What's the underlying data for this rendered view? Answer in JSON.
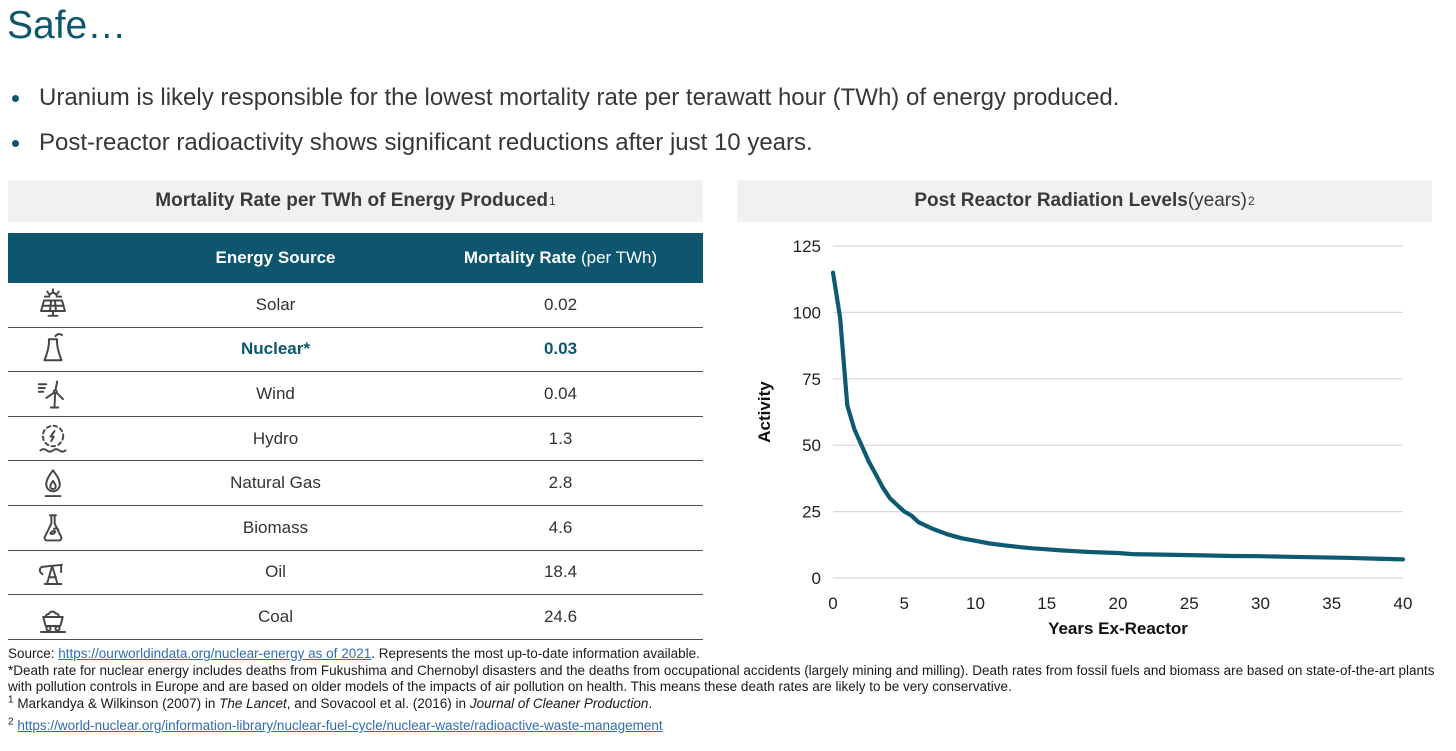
{
  "slide": {
    "title": "Safe…",
    "bullets": [
      "Uranium is likely responsible for the lowest mortality rate per terawatt hour (TWh) of energy produced.",
      "Post-reactor radioactivity shows significant reductions after just 10 years."
    ]
  },
  "colors": {
    "accent_teal": "#0d566e",
    "band_gray": "#f2f1ef",
    "link_blue": "#2e6db5",
    "gridline_gray": "#d8d8d8",
    "row_line_gray": "#4f4f4f"
  },
  "table": {
    "title": "Mortality Rate per TWh of Energy Produced",
    "title_sup": "1",
    "columns": {
      "source": "Energy Source",
      "rate_bold": "Mortality Rate",
      "rate_normal": " (per TWh)"
    },
    "rows": [
      {
        "icon": "solar-icon",
        "source": "Solar",
        "rate": "0.02",
        "highlight": false
      },
      {
        "icon": "nuclear-icon",
        "source": "Nuclear*",
        "rate": "0.03",
        "highlight": true
      },
      {
        "icon": "wind-icon",
        "source": "Wind",
        "rate": "0.04",
        "highlight": false
      },
      {
        "icon": "hydro-icon",
        "source": "Hydro",
        "rate": "1.3",
        "highlight": false
      },
      {
        "icon": "natural-gas-icon",
        "source": "Natural Gas",
        "rate": "2.8",
        "highlight": false
      },
      {
        "icon": "biomass-icon",
        "source": "Biomass",
        "rate": "4.6",
        "highlight": false
      },
      {
        "icon": "oil-icon",
        "source": "Oil",
        "rate": "18.4",
        "highlight": false
      },
      {
        "icon": "coal-icon",
        "source": "Coal",
        "rate": "24.6",
        "highlight": false
      }
    ]
  },
  "chart": {
    "title_bold": "Post Reactor Radiation Levels",
    "title_normal": " (years)",
    "title_sup": "2"
  },
  "chart_data": {
    "type": "line",
    "title": "Post Reactor Radiation Levels (years)",
    "xlabel": "Years Ex-Reactor",
    "ylabel": "Activity",
    "xlim": [
      0,
      40
    ],
    "ylim": [
      0,
      125
    ],
    "xticks": [
      0,
      5,
      10,
      15,
      20,
      25,
      30,
      35,
      40
    ],
    "yticks": [
      0,
      25,
      50,
      75,
      100,
      125
    ],
    "grid": "horizontal",
    "legend": "none",
    "line_color": "#0e5a73",
    "points": [
      [
        0,
        115
      ],
      [
        0.5,
        98
      ],
      [
        1,
        65
      ],
      [
        1.5,
        56
      ],
      [
        2,
        50
      ],
      [
        2.5,
        44
      ],
      [
        3,
        39
      ],
      [
        3.5,
        34
      ],
      [
        4,
        30
      ],
      [
        4.5,
        27.5
      ],
      [
        5,
        25
      ],
      [
        5.5,
        23.5
      ],
      [
        6,
        21
      ],
      [
        7,
        18.5
      ],
      [
        8,
        16.5
      ],
      [
        9,
        15
      ],
      [
        10,
        14
      ],
      [
        11,
        13
      ],
      [
        12,
        12.3
      ],
      [
        13,
        11.7
      ],
      [
        14,
        11.2
      ],
      [
        15,
        10.8
      ],
      [
        16,
        10.4
      ],
      [
        17,
        10.1
      ],
      [
        18,
        9.8
      ],
      [
        19,
        9.6
      ],
      [
        20,
        9.4
      ],
      [
        21,
        9
      ],
      [
        22,
        8.9
      ],
      [
        24,
        8.7
      ],
      [
        26,
        8.5
      ],
      [
        28,
        8.3
      ],
      [
        30,
        8.2
      ],
      [
        32,
        8
      ],
      [
        34,
        7.8
      ],
      [
        36,
        7.6
      ],
      [
        38,
        7.3
      ],
      [
        40,
        7
      ]
    ]
  },
  "footer": {
    "lines": [
      [
        {
          "t": "Source: "
        },
        {
          "t": "https://ourworldindata.org/nuclear-energy as of 2021",
          "s": "link"
        },
        {
          "t": ". Represents the most up-to-date information available."
        }
      ],
      [
        {
          "t": "*Death rate for nuclear energy includes deaths from Fukushima and Chernobyl disasters and the deaths from occupational accidents (largely mining and milling). Death rates from fossil fuels and biomass are based on state-of-the-art plants with pollution controls in Europe and are based on older models of the impacts of air pollution on health. This means these death rates are likely to be very conservative."
        }
      ],
      [
        {
          "t": "1",
          "s": "sup"
        },
        {
          "t": " Markandya & Wilkinson (2007) in "
        },
        {
          "t": "The Lancet",
          "s": "italic"
        },
        {
          "t": ", and Sovacool et al. (2016) in "
        },
        {
          "t": "Journal of Cleaner Production",
          "s": "italic"
        },
        {
          "t": "."
        }
      ],
      [
        {
          "t": "2",
          "s": "sup"
        },
        {
          "t": " "
        },
        {
          "t": "https://world-nuclear.org/information-library/nuclear-fuel-cycle/nuclear-waste/radioactive-waste-management",
          "s": "link"
        }
      ]
    ]
  }
}
